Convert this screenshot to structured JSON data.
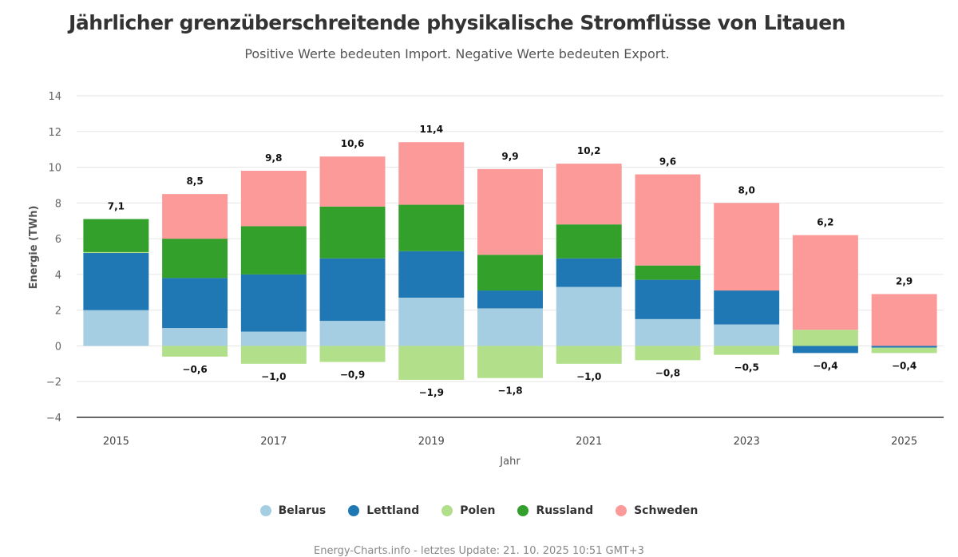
{
  "chart_data": {
    "type": "bar",
    "stacked": true,
    "title": "Jährlicher grenzüberschreitende physikalische Stromflüsse von Litauen",
    "subtitle": "Positive Werte bedeuten Import. Negative Werte bedeuten Export.",
    "xlabel": "Jahr",
    "ylabel": "Energie (TWh)",
    "ylim": [
      -4,
      14
    ],
    "yticks": [
      14,
      12,
      10,
      8,
      6,
      4,
      2,
      0,
      -2,
      -4
    ],
    "ytick_labels": [
      "14",
      "12",
      "10",
      "8",
      "6",
      "4",
      "2",
      "0",
      "−2",
      "−4"
    ],
    "categories": [
      "2015",
      "2016",
      "2017",
      "2018",
      "2019",
      "2020",
      "2021",
      "2022",
      "2023",
      "2024",
      "2025"
    ],
    "xtick_labels": [
      "2015",
      "",
      "2017",
      "",
      "2019",
      "",
      "2021",
      "",
      "2023",
      "",
      "2025"
    ],
    "grid": true,
    "legend_position": "bottom",
    "series": [
      {
        "name": "Belarus",
        "color": "#a6cee3",
        "values": [
          2.0,
          1.0,
          0.8,
          1.4,
          2.7,
          2.1,
          3.3,
          1.5,
          1.2,
          0.0,
          0.0
        ]
      },
      {
        "name": "Lettland",
        "color": "#1f78b4",
        "values": [
          3.2,
          2.8,
          3.2,
          3.5,
          2.6,
          1.0,
          1.6,
          2.2,
          1.9,
          -0.4,
          -0.1
        ]
      },
      {
        "name": "Polen",
        "color": "#b2df8a",
        "values": [
          0.05,
          -0.6,
          -1.0,
          -0.9,
          -1.9,
          -1.8,
          -1.0,
          -0.8,
          -0.5,
          0.9,
          -0.3
        ]
      },
      {
        "name": "Russland",
        "color": "#33a02c",
        "values": [
          1.85,
          2.2,
          2.7,
          2.9,
          2.6,
          2.0,
          1.9,
          0.8,
          0.0,
          0.0,
          0.0
        ]
      },
      {
        "name": "Schweden",
        "color": "#fb9a99",
        "values": [
          0.0,
          2.5,
          3.1,
          2.8,
          3.5,
          4.8,
          3.4,
          5.1,
          4.9,
          5.3,
          2.9
        ]
      }
    ],
    "positive_totals": [
      "7,1",
      "8,5",
      "9,8",
      "10,6",
      "11,4",
      "9,9",
      "10,2",
      "9,6",
      "8,0",
      "6,2",
      "2,9"
    ],
    "negative_totals": [
      "",
      "−0,6",
      "−1,0",
      "−0,9",
      "−1,9",
      "−1,8",
      "−1,0",
      "−0,8",
      "−0,5",
      "−0,4",
      "−0,4"
    ]
  },
  "credits": "Energy-Charts.info - letztes Update: 21. 10. 2025 10:51 GMT+3"
}
